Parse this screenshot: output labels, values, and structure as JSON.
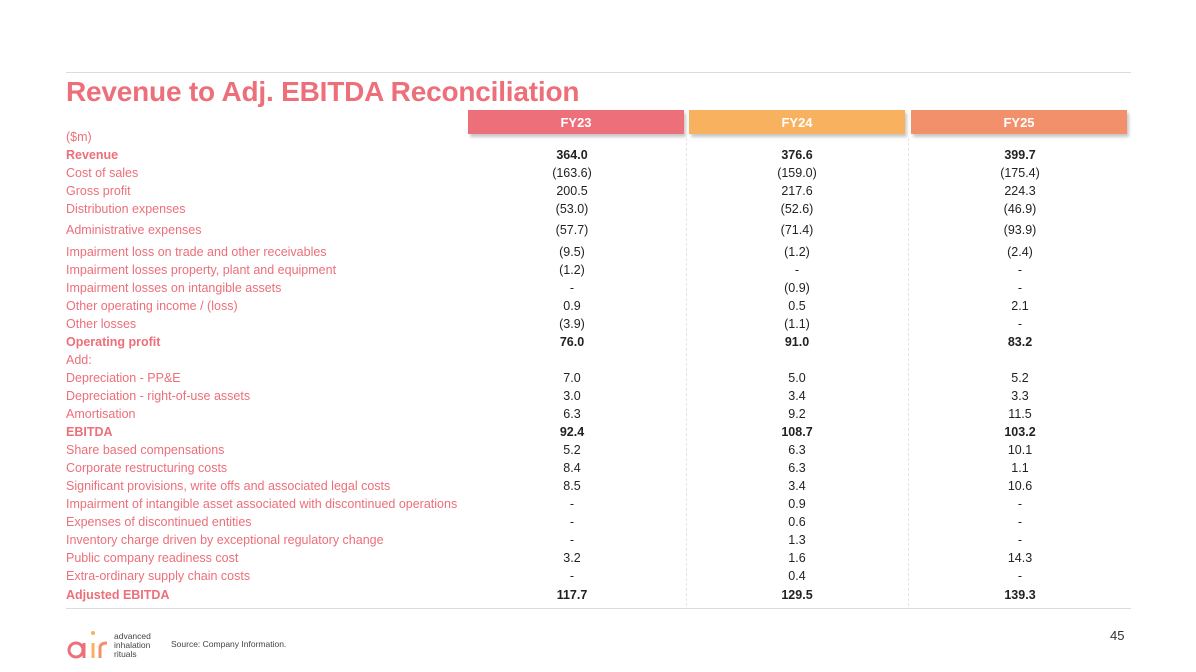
{
  "title": "Revenue to Adj. EBITDA Reconciliation",
  "columns": [
    {
      "label": "FY23",
      "color": "#ec6f79"
    },
    {
      "label": "FY24",
      "color": "#f7b15f"
    },
    {
      "label": "FY25",
      "color": "#f1906b"
    }
  ],
  "unit_label": "($m)",
  "rows": [
    {
      "label": "Revenue",
      "bold": true,
      "values": [
        "364.0",
        "376.6",
        "399.7"
      ]
    },
    {
      "label": "Cost of sales",
      "bold": false,
      "values": [
        "(163.6)",
        "(159.0)",
        "(175.4)"
      ]
    },
    {
      "label": "Gross profit",
      "bold": false,
      "values": [
        "200.5",
        "217.6",
        "224.3"
      ]
    },
    {
      "label": "Distribution expenses",
      "bold": false,
      "values": [
        "(53.0)",
        "(52.6)",
        "(46.9)"
      ]
    },
    {
      "label": "Administrative expenses",
      "bold": false,
      "values": [
        "(57.7)",
        "(71.4)",
        "(93.9)"
      ]
    },
    {
      "label": "Impairment loss on trade and other receivables",
      "bold": false,
      "values": [
        "(9.5)",
        "(1.2)",
        "(2.4)"
      ]
    },
    {
      "label": "Impairment losses property, plant and equipment",
      "bold": false,
      "values": [
        "(1.2)",
        "-",
        "-"
      ]
    },
    {
      "label": "Impairment losses on intangible assets",
      "bold": false,
      "values": [
        "-",
        "(0.9)",
        "-"
      ]
    },
    {
      "label": "Other operating income / (loss)",
      "bold": false,
      "values": [
        "0.9",
        "0.5",
        "2.1"
      ]
    },
    {
      "label": "Other losses",
      "bold": false,
      "values": [
        "(3.9)",
        "(1.1)",
        "-"
      ]
    },
    {
      "label": "Operating profit",
      "bold": true,
      "values": [
        "76.0",
        "91.0",
        "83.2"
      ]
    },
    {
      "label": "Add:",
      "bold": false,
      "values": [
        "",
        "",
        ""
      ]
    },
    {
      "label": "Depreciation - PP&E",
      "bold": false,
      "values": [
        "7.0",
        "5.0",
        "5.2"
      ]
    },
    {
      "label": "Depreciation - right-of-use assets",
      "bold": false,
      "values": [
        "3.0",
        "3.4",
        "3.3"
      ]
    },
    {
      "label": "Amortisation",
      "bold": false,
      "values": [
        "6.3",
        "9.2",
        "11.5"
      ]
    },
    {
      "label": "EBITDA",
      "bold": true,
      "values": [
        "92.4",
        "108.7",
        "103.2"
      ]
    },
    {
      "label": "Share based compensations",
      "bold": false,
      "values": [
        "5.2",
        "6.3",
        "10.1"
      ]
    },
    {
      "label": "Corporate restructuring costs",
      "bold": false,
      "values": [
        "8.4",
        "6.3",
        "1.1"
      ]
    },
    {
      "label": "Significant provisions, write offs and associated legal costs",
      "bold": false,
      "values": [
        "8.5",
        "3.4",
        "10.6"
      ]
    },
    {
      "label": "Impairment of intangible asset associated with discontinued operations",
      "bold": false,
      "values": [
        "-",
        "0.9",
        "-"
      ]
    },
    {
      "label": "Expenses of discontinued entities",
      "bold": false,
      "values": [
        "-",
        "0.6",
        "-"
      ]
    },
    {
      "label": "Inventory charge driven by exceptional regulatory change",
      "bold": false,
      "values": [
        "-",
        "1.3",
        "-"
      ]
    },
    {
      "label": "Public company readiness cost",
      "bold": false,
      "values": [
        "3.2",
        "1.6",
        "14.3"
      ]
    },
    {
      "label": "Extra-ordinary supply chain costs",
      "bold": false,
      "values": [
        "-",
        "0.4",
        "-"
      ]
    },
    {
      "label": "Adjusted EBITDA",
      "bold": true,
      "values": [
        "117.7",
        "129.5",
        "139.3"
      ]
    }
  ],
  "footer": {
    "source": "Source: Company Information.",
    "page_number": "45",
    "logo_mark": "air",
    "logo_text": [
      "advanced",
      "inhalation",
      "rituals"
    ]
  }
}
